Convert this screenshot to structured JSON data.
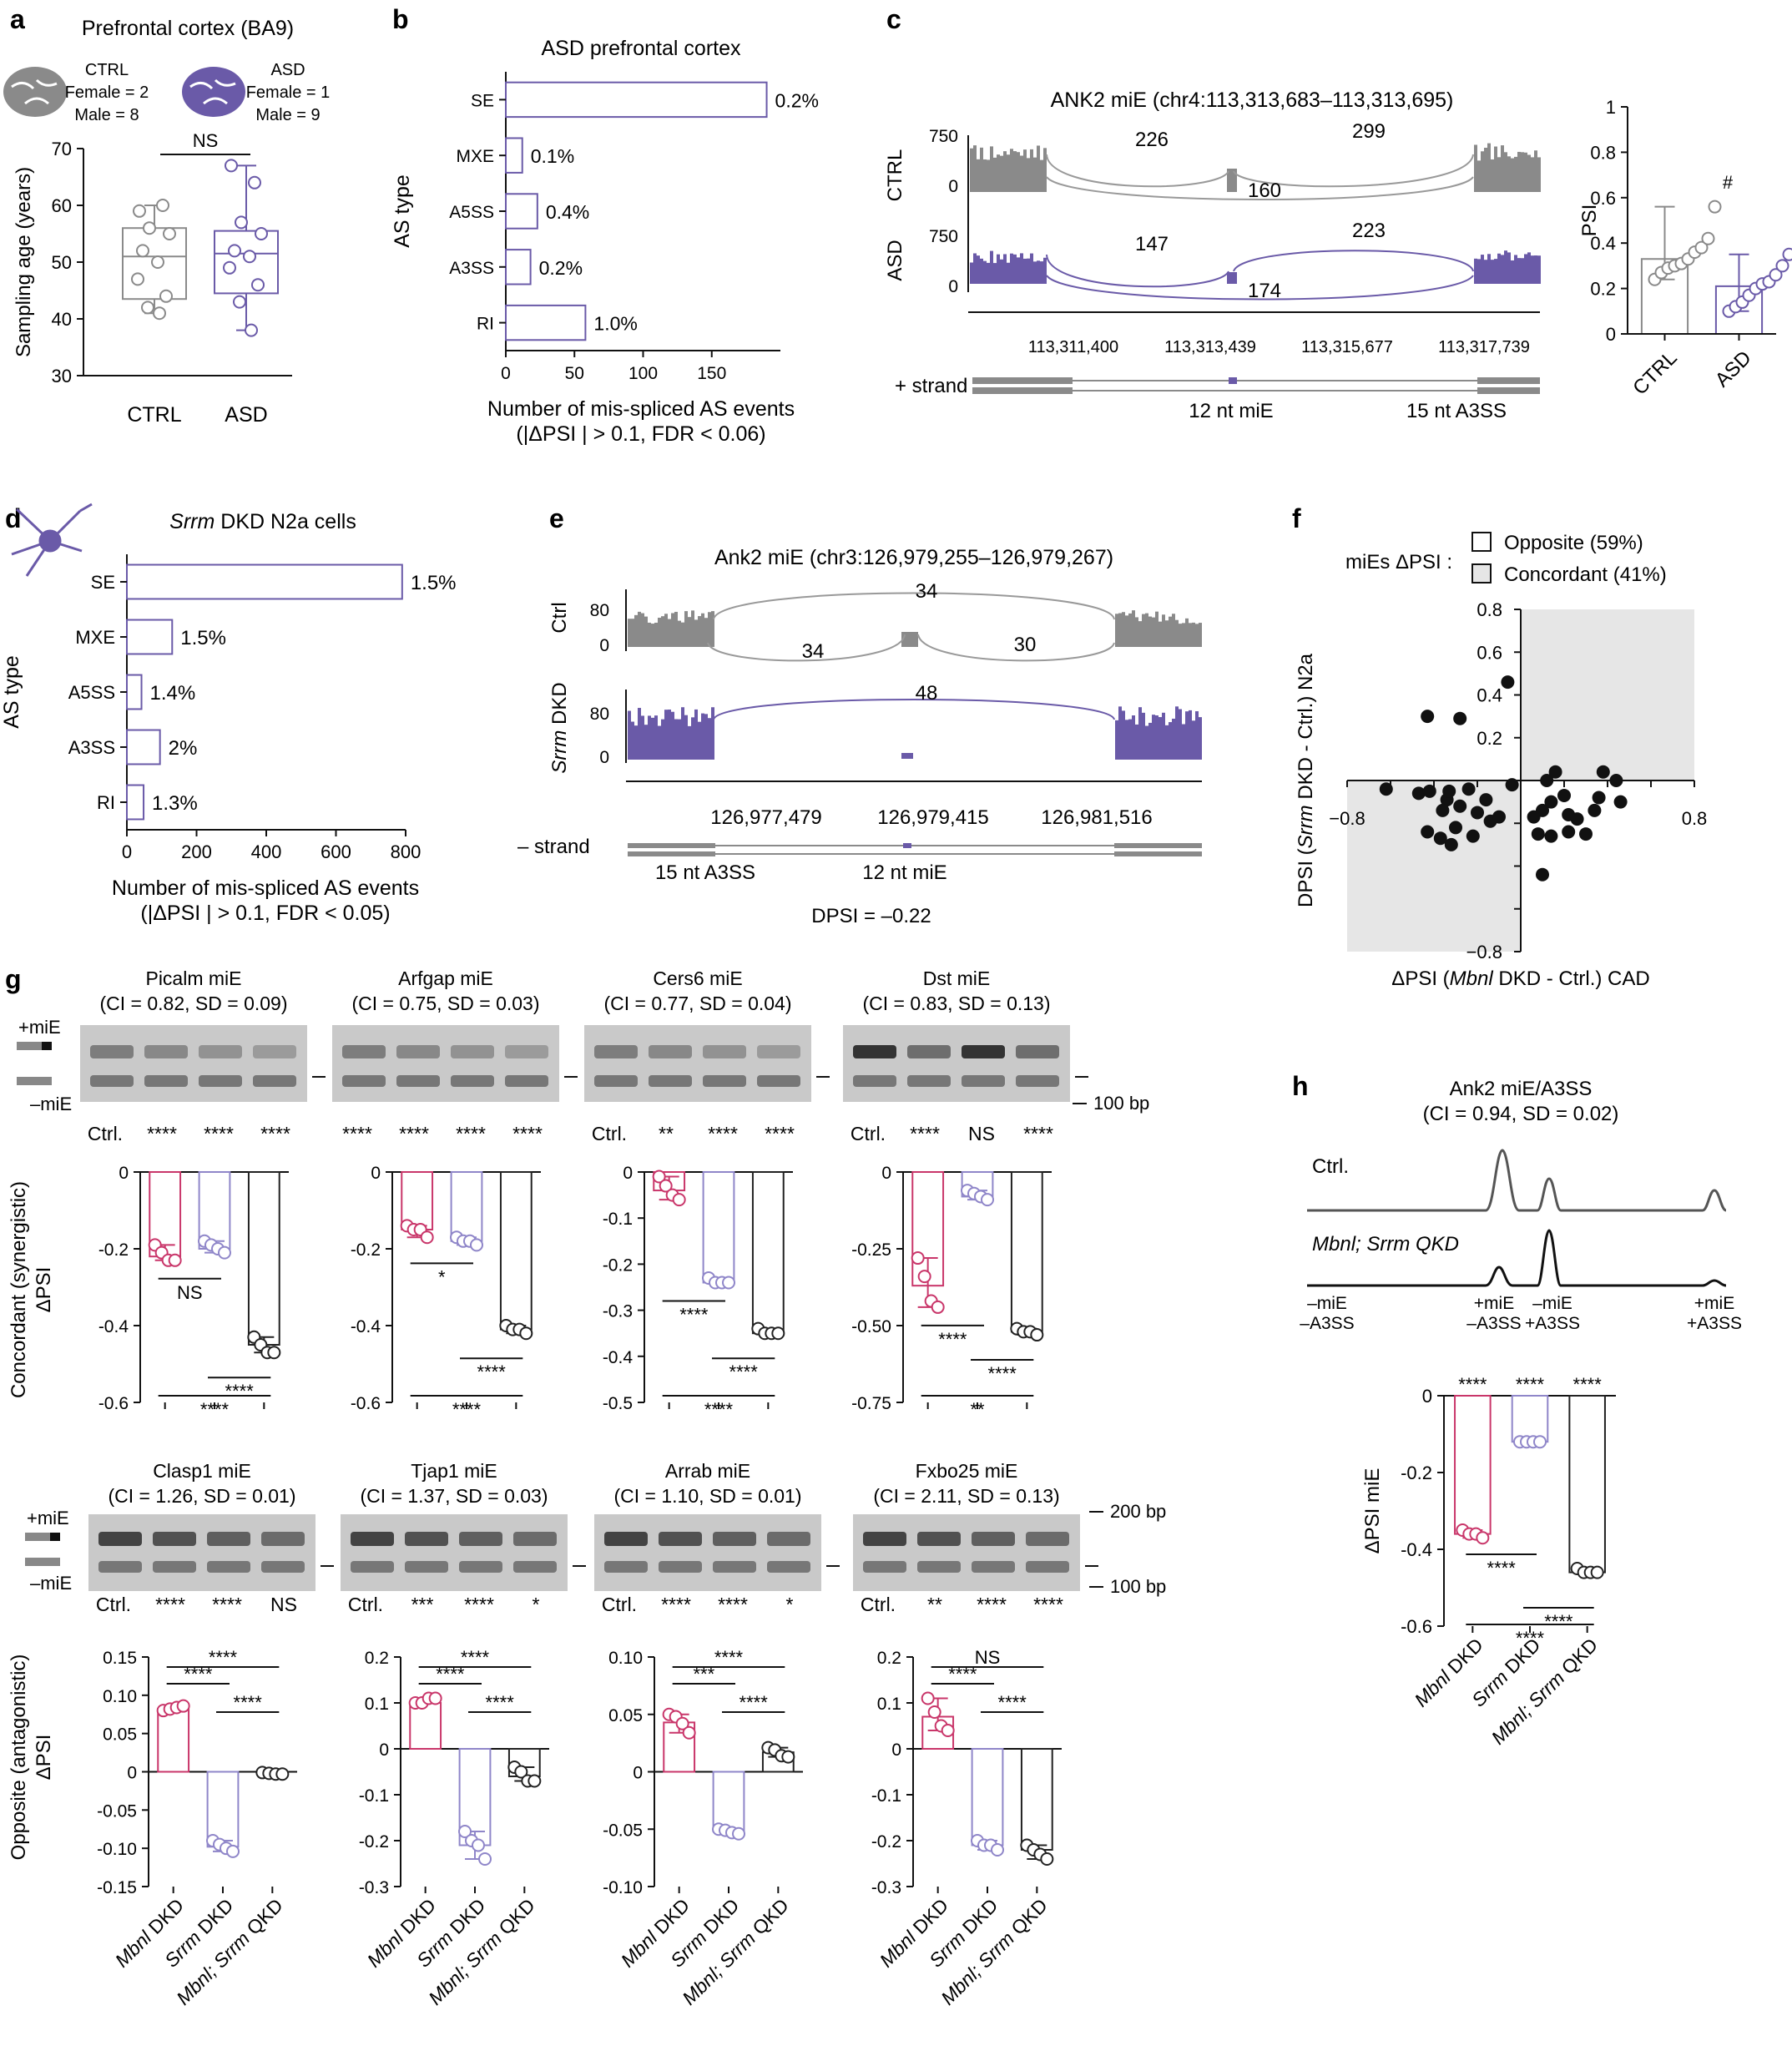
{
  "figure": {
    "panel_letters": [
      "a",
      "b",
      "c",
      "d",
      "e",
      "f",
      "g",
      "h"
    ],
    "colors": {
      "ctrl": "#8a8a8a",
      "asd": "#6a5aa8",
      "mbnl": "#c9366a",
      "srrm": "#8f86c9",
      "qkd": "#222222",
      "black": "#111111"
    }
  },
  "a": {
    "title": "Prefrontal cortex (BA9)",
    "legend_ctrl": [
      "CTRL",
      "Female = 2",
      "Male = 8"
    ],
    "legend_asd": [
      "ASD",
      "Female = 1",
      "Male = 9"
    ],
    "sig": "NS"
  },
  "b": {
    "title": "ASD prefrontal cortex"
  },
  "c": {
    "title": "ANK2 miE (chr4:113,313,683–113,313,695)",
    "row_labels": [
      "CTRL",
      "ASD"
    ],
    "ctrl_yticks": [
      "750",
      "0"
    ],
    "asd_yticks": [
      "750",
      "0"
    ],
    "ctrl_junctions": [
      "226",
      "299",
      "160"
    ],
    "asd_junctions": [
      "147",
      "223",
      "174"
    ],
    "coords": [
      "113,311,400",
      "113,313,439",
      "113,315,677",
      "113,317,739"
    ],
    "strand": "+ strand",
    "feature_labels": [
      "12 nt miE",
      "15 nt A3SS"
    ],
    "psi_sig": "#"
  },
  "d": {
    "title": "DKD N2a cells",
    "title_gene": "Srrm"
  },
  "e": {
    "title": "Ank2 miE (chr3:126,979,255–126,979,267)",
    "row_labels": [
      "Ctrl",
      "DKD"
    ],
    "row_gene": "Srrm",
    "ctrl_yticks": [
      "80",
      "0"
    ],
    "dkd_yticks": [
      "80",
      "0"
    ],
    "ctrl_junctions": [
      "34",
      "34",
      "30"
    ],
    "dkd_junctions": [
      "48"
    ],
    "coords": [
      "126,977,479",
      "126,979,415",
      "126,981,516"
    ],
    "strand": "– strand",
    "feature_labels": [
      "15 nt A3SS",
      "12 nt miE"
    ],
    "dpsi": "DPSI = –0.22"
  },
  "f": {
    "legend_title": "miEs ΔPSI :",
    "legend": [
      "Opposite (59%)",
      "Concordant (41%)"
    ]
  },
  "g": {
    "top_labels": [
      "+miE",
      "–miE"
    ],
    "size_100": "100 bp",
    "size_200": "200 bp",
    "row1_ylabel": [
      "Concordant (synergistic)",
      "ΔPSI"
    ],
    "row2_ylabel": [
      "Opposite (antagonistic)",
      "ΔPSI"
    ],
    "x_categories": [
      "Mbnl DKD",
      "Srrm DKD",
      "Mbnl; Srrm QKD"
    ]
  },
  "h": {
    "title": [
      "Ank2 miE/A3SS",
      "(CI = 0.94, SD = 0.02)"
    ],
    "trace_labels": [
      "Ctrl.",
      "Mbnl; Srrm QKD"
    ],
    "peak_labels": [
      [
        "–miE",
        "–A3SS"
      ],
      [
        "+miE",
        "–A3SS"
      ],
      [
        "–miE",
        "+A3SS"
      ],
      [
        "+miE",
        "+A3SS"
      ]
    ]
  },
  "chart_data": [
    {
      "panel": "a",
      "type": "box",
      "categories": [
        "CTRL",
        "ASD"
      ],
      "ylabel": "Sampling age (years)",
      "ylim": [
        30,
        70
      ],
      "yticks": [
        30,
        40,
        50,
        60,
        70
      ],
      "series": [
        {
          "name": "CTRL",
          "values": [
            59,
            60,
            56,
            55,
            52,
            50,
            47,
            44,
            42,
            41
          ],
          "median": 51,
          "q1": 43.5,
          "q3": 56,
          "whisker": [
            41,
            60
          ]
        },
        {
          "name": "ASD",
          "values": [
            67,
            64,
            57,
            55,
            52,
            51,
            49,
            46,
            43,
            38
          ],
          "median": 51.5,
          "q1": 44.5,
          "q3": 55.5,
          "whisker": [
            38,
            67
          ]
        }
      ]
    },
    {
      "panel": "b",
      "type": "bar",
      "orientation": "horizontal",
      "categories": [
        "SE",
        "MXE",
        "A5SS",
        "A3SS",
        "RI"
      ],
      "values": [
        190,
        12,
        23,
        18,
        58
      ],
      "labels": [
        "0.2%",
        "0.1%",
        "0.4%",
        "0.2%",
        "1.0%"
      ],
      "xlabel": "Number of mis-spliced AS events",
      "xlabel2": "(|ΔPSI | > 0.1, FDR < 0.06)",
      "ylabel": "AS type",
      "xlim": [
        0,
        200
      ],
      "xticks": [
        0,
        50,
        100,
        150
      ]
    },
    {
      "panel": "c",
      "type": "bar",
      "categories": [
        "CTRL",
        "ASD"
      ],
      "values": [
        0.33,
        0.21
      ],
      "points": [
        [
          0.24,
          0.27,
          0.29,
          0.3,
          0.31,
          0.33,
          0.36,
          0.38,
          0.42,
          0.56
        ],
        [
          0.1,
          0.12,
          0.14,
          0.17,
          0.2,
          0.22,
          0.23,
          0.26,
          0.3,
          0.35
        ]
      ],
      "ylabel": "PSI",
      "ylim": [
        0,
        1.0
      ],
      "yticks": [
        0,
        0.2,
        0.4,
        0.6,
        0.8,
        1.0
      ]
    },
    {
      "panel": "d",
      "type": "bar",
      "orientation": "horizontal",
      "categories": [
        "SE",
        "MXE",
        "A5SS",
        "A3SS",
        "RI"
      ],
      "values": [
        790,
        130,
        42,
        95,
        48
      ],
      "labels": [
        "1.5%",
        "1.5%",
        "1.4%",
        "2%",
        "1.3%"
      ],
      "xlabel": "Number of mis-spliced AS events",
      "xlabel2": "(|ΔPSI | > 0.1, FDR < 0.05)",
      "ylabel": "AS type",
      "xlim": [
        0,
        800
      ],
      "xticks": [
        0,
        200,
        400,
        600,
        800
      ]
    },
    {
      "panel": "f",
      "type": "scatter",
      "xlabel": "ΔPSI (Mbnl DKD - Ctrl.) CAD",
      "ylabel": "DPSI (Srrm DKD - Ctrl.) N2a",
      "xlim": [
        -0.8,
        0.8
      ],
      "ylim": [
        -0.8,
        0.8
      ],
      "xticks": [
        -0.8,
        0.8
      ],
      "yticks": [
        -0.8,
        0.2,
        0.4,
        0.6,
        0.8
      ],
      "points": [
        [
          -0.62,
          -0.04
        ],
        [
          -0.47,
          -0.06
        ],
        [
          -0.42,
          -0.05
        ],
        [
          -0.34,
          -0.09
        ],
        [
          -0.33,
          -0.05
        ],
        [
          -0.36,
          -0.14
        ],
        [
          -0.28,
          -0.12
        ],
        [
          -0.24,
          -0.04
        ],
        [
          -0.2,
          -0.15
        ],
        [
          -0.16,
          -0.09
        ],
        [
          -0.14,
          -0.19
        ],
        [
          -0.1,
          -0.17
        ],
        [
          -0.04,
          -0.02
        ],
        [
          -0.43,
          -0.24
        ],
        [
          -0.37,
          -0.27
        ],
        [
          -0.32,
          -0.3
        ],
        [
          -0.3,
          -0.22
        ],
        [
          -0.22,
          -0.26
        ],
        [
          -0.43,
          0.3
        ],
        [
          -0.28,
          0.29
        ],
        [
          -0.06,
          0.46
        ],
        [
          0.16,
          0.04
        ],
        [
          0.12,
          0.0
        ],
        [
          0.2,
          -0.07
        ],
        [
          0.14,
          -0.1
        ],
        [
          0.1,
          -0.14
        ],
        [
          0.06,
          -0.17
        ],
        [
          0.22,
          -0.16
        ],
        [
          0.26,
          -0.18
        ],
        [
          0.34,
          -0.14
        ],
        [
          0.36,
          -0.08
        ],
        [
          0.38,
          0.04
        ],
        [
          0.44,
          0.0
        ],
        [
          0.46,
          -0.1
        ],
        [
          0.08,
          -0.25
        ],
        [
          0.14,
          -0.26
        ],
        [
          0.22,
          -0.24
        ],
        [
          0.3,
          -0.25
        ],
        [
          0.1,
          -0.44
        ]
      ]
    },
    {
      "panel": "g",
      "name": "Picalm miE",
      "gel_title": [
        "Picalm miE",
        "(CI = 0.82, SD = 0.09)"
      ],
      "gel_sig": [
        "Ctrl.",
        "****",
        "****",
        "****"
      ],
      "type": "bar",
      "categories": [
        "Mbnl DKD",
        "Srrm DKD",
        "Mbnl; Srrm QKD"
      ],
      "values": [
        -0.22,
        -0.2,
        -0.45
      ],
      "points": [
        [
          -0.19,
          -0.21,
          -0.23,
          -0.23
        ],
        [
          -0.18,
          -0.19,
          -0.2,
          -0.21
        ],
        [
          -0.43,
          -0.45,
          -0.47,
          -0.47
        ]
      ],
      "ylim": [
        -0.6,
        0
      ],
      "yticks": [
        0,
        -0.2,
        -0.4,
        -0.6
      ],
      "sig": [
        "NS",
        "****",
        "****"
      ]
    },
    {
      "panel": "g",
      "name": "Arfgap miE",
      "gel_title": [
        "Arfgap miE",
        "(CI = 0.75, SD = 0.03)"
      ],
      "gel_sig": [
        "****",
        "****",
        "****",
        "****"
      ],
      "type": "bar",
      "categories": [
        "Mbnl DKD",
        "Srrm DKD",
        "Mbnl; Srrm QKD"
      ],
      "values": [
        -0.15,
        -0.18,
        -0.41
      ],
      "points": [
        [
          -0.14,
          -0.15,
          -0.15,
          -0.17
        ],
        [
          -0.17,
          -0.18,
          -0.18,
          -0.19
        ],
        [
          -0.4,
          -0.41,
          -0.41,
          -0.42
        ]
      ],
      "ylim": [
        -0.6,
        0
      ],
      "yticks": [
        0,
        -0.2,
        -0.4,
        -0.6
      ],
      "sig": [
        "*",
        "****",
        "****"
      ]
    },
    {
      "panel": "g",
      "name": "Cers6 miE",
      "gel_title": [
        "Cers6 miE",
        "(CI = 0.77, SD = 0.04)"
      ],
      "gel_sig": [
        "Ctrl.",
        "**",
        "****",
        "****"
      ],
      "type": "bar",
      "categories": [
        "Mbnl DKD",
        "Srrm DKD",
        "Mbnl; Srrm QKD"
      ],
      "values": [
        -0.04,
        -0.24,
        -0.35
      ],
      "points": [
        [
          -0.01,
          -0.03,
          -0.05,
          -0.06
        ],
        [
          -0.23,
          -0.24,
          -0.24,
          -0.24
        ],
        [
          -0.34,
          -0.35,
          -0.35,
          -0.35
        ]
      ],
      "ylim": [
        -0.5,
        0
      ],
      "yticks": [
        0,
        -0.1,
        -0.2,
        -0.3,
        -0.4,
        -0.5
      ],
      "sig": [
        "****",
        "****",
        "****"
      ]
    },
    {
      "panel": "g",
      "name": "Dst miE",
      "gel_title": [
        "Dst miE",
        "(CI = 0.83, SD = 0.13)"
      ],
      "gel_sig": [
        "Ctrl.",
        "****",
        "NS",
        "****"
      ],
      "type": "bar",
      "categories": [
        "Mbnl DKD",
        "Srrm DKD",
        "Mbnl; Srrm QKD"
      ],
      "values": [
        -0.37,
        -0.08,
        -0.52
      ],
      "points": [
        [
          -0.28,
          -0.34,
          -0.42,
          -0.44
        ],
        [
          -0.06,
          -0.07,
          -0.08,
          -0.09
        ],
        [
          -0.51,
          -0.52,
          -0.52,
          -0.53
        ]
      ],
      "ylim": [
        -0.75,
        0
      ],
      "yticks": [
        0,
        -0.25,
        -0.5,
        -0.75
      ],
      "ytick_labels": [
        "0",
        "-0.25",
        "-0.50",
        "-0.75"
      ],
      "sig": [
        "****",
        "****",
        "**"
      ]
    },
    {
      "panel": "g",
      "name": "Clasp1 miE",
      "gel_title": [
        "Clasp1 miE",
        "(CI = 1.26, SD = 0.01)"
      ],
      "gel_sig": [
        "Ctrl.",
        "****",
        "****",
        "NS"
      ],
      "type": "bar",
      "categories": [
        "Mbnl DKD",
        "Srrm DKD",
        "Mbnl; Srrm QKD"
      ],
      "values": [
        0.082,
        -0.098,
        -0.002
      ],
      "points": [
        [
          0.08,
          0.082,
          0.084,
          0.086
        ],
        [
          -0.09,
          -0.095,
          -0.1,
          -0.104
        ],
        [
          -0.001,
          -0.002,
          -0.003,
          -0.003
        ]
      ],
      "ylim": [
        -0.15,
        0.15
      ],
      "yticks": [
        0.15,
        0.1,
        0.05,
        0,
        -0.05,
        -0.1,
        -0.15
      ],
      "ytick_labels": [
        "0.15",
        "0.10",
        "0.05",
        "0",
        "-0.05",
        "-0.10",
        "-0.15"
      ],
      "sig": [
        "****",
        "****",
        "****"
      ]
    },
    {
      "panel": "g",
      "name": "Tjap1 miE",
      "gel_title": [
        "Tjap1 miE",
        "(CI = 1.37, SD = 0.03)"
      ],
      "gel_sig": [
        "Ctrl.",
        "***",
        "****",
        "*"
      ],
      "type": "bar",
      "categories": [
        "Mbnl DKD",
        "Srrm DKD",
        "Mbnl; Srrm QKD"
      ],
      "values": [
        0.1,
        -0.21,
        -0.06
      ],
      "points": [
        [
          0.1,
          0.1,
          0.11,
          0.11
        ],
        [
          -0.18,
          -0.2,
          -0.21,
          -0.24
        ],
        [
          -0.04,
          -0.05,
          -0.07,
          -0.07
        ]
      ],
      "ylim": [
        -0.3,
        0.2
      ],
      "yticks": [
        0.2,
        0.1,
        0,
        -0.1,
        -0.2,
        -0.3
      ],
      "sig": [
        "****",
        "****",
        "****"
      ]
    },
    {
      "panel": "g",
      "name": "Arrab miE",
      "gel_title": [
        "Arrab miE",
        "(CI = 1.10, SD = 0.01)"
      ],
      "gel_sig": [
        "Ctrl.",
        "****",
        "****",
        "*"
      ],
      "type": "bar",
      "categories": [
        "Mbnl DKD",
        "Srrm DKD",
        "Mbnl; Srrm QKD"
      ],
      "values": [
        0.043,
        -0.052,
        0.017
      ],
      "points": [
        [
          0.05,
          0.048,
          0.042,
          0.034
        ],
        [
          -0.05,
          -0.051,
          -0.053,
          -0.054
        ],
        [
          0.021,
          0.019,
          0.014,
          0.013
        ]
      ],
      "ylim": [
        -0.1,
        0.1
      ],
      "yticks": [
        0.1,
        0.05,
        0,
        -0.05,
        -0.1
      ],
      "ytick_labels": [
        "0.10",
        "0.05",
        "0",
        "-0.05",
        "-0.10"
      ],
      "sig": [
        "***",
        "****",
        "****"
      ]
    },
    {
      "panel": "g",
      "name": "Fxbo25 miE",
      "gel_title": [
        "Fxbo25 miE",
        "(CI = 2.11, SD = 0.13)"
      ],
      "gel_sig": [
        "Ctrl.",
        "**",
        "****",
        "****"
      ],
      "type": "bar",
      "categories": [
        "Mbnl DKD",
        "Srrm DKD",
        "Mbnl; Srrm QKD"
      ],
      "values": [
        0.07,
        -0.21,
        -0.22
      ],
      "points": [
        [
          0.11,
          0.08,
          0.05,
          0.04
        ],
        [
          -0.2,
          -0.21,
          -0.21,
          -0.22
        ],
        [
          -0.21,
          -0.22,
          -0.23,
          -0.24
        ]
      ],
      "ylim": [
        -0.3,
        0.2
      ],
      "yticks": [
        0.2,
        0.1,
        0,
        -0.1,
        -0.2,
        -0.3
      ],
      "sig": [
        "****",
        "****",
        "NS"
      ]
    },
    {
      "panel": "h",
      "type": "bar",
      "categories": [
        "Mbnl DKD",
        "Srrm DKD",
        "Mbnl; Srrm QKD"
      ],
      "values": [
        -0.36,
        -0.12,
        -0.46
      ],
      "points": [
        [
          -0.35,
          -0.36,
          -0.36,
          -0.37
        ],
        [
          -0.12,
          -0.12,
          -0.12,
          -0.12
        ],
        [
          -0.45,
          -0.46,
          -0.46,
          -0.46
        ]
      ],
      "ylabel": "ΔPSI miE",
      "ylim": [
        -0.6,
        0
      ],
      "yticks": [
        0,
        -0.2,
        -0.4,
        -0.6
      ],
      "top_sig": [
        "****",
        "****",
        "****"
      ],
      "sig": [
        "****",
        "****",
        "****"
      ]
    }
  ]
}
